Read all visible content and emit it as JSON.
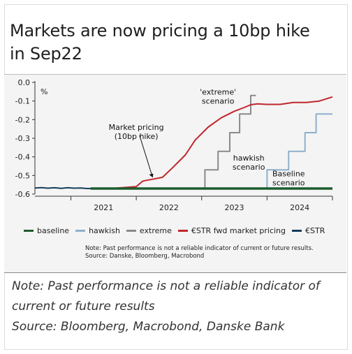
{
  "title_line1": "Markets are now pricing a 10bp hike",
  "title_line2": "in Sep22",
  "footer": {
    "note": "Note: Past performance is not a reliable indicator of current or future results",
    "source": "Source: Bloomberg, Macrobond, Danske Bank"
  },
  "chart_note": {
    "line1": "Note: Past performance is not a reliable indicator of current or future results.",
    "line2": "Source: Danske, Bloomberg, Macrobond"
  },
  "chart_data": {
    "type": "line",
    "ylabel": "%",
    "ylim": [
      -0.6,
      0.0
    ],
    "yticks": [
      0.0,
      -0.1,
      -0.2,
      -0.3,
      -0.4,
      -0.5,
      -0.6
    ],
    "ytick_labels": [
      "0.0",
      "-0.1",
      "-0.2",
      "-0.3",
      "-0.4",
      "-0.5",
      "-0.6"
    ],
    "xlim": [
      2020.45,
      2025.0
    ],
    "xticks": [
      "2021",
      "2022",
      "2023",
      "2024"
    ],
    "grid": false,
    "legend_position": "bottom",
    "series": [
      {
        "name": "baseline",
        "color": "#1e5c2e",
        "x": [
          2021.3,
          2025.0
        ],
        "y": [
          -0.57,
          -0.57
        ]
      },
      {
        "name": "hawkish",
        "color": "#8eb0cc",
        "x": [
          2023.83,
          2024.0,
          2024.0,
          2024.33,
          2024.33,
          2024.58,
          2024.58,
          2024.75,
          2024.75,
          2024.92,
          2024.92,
          2025.0
        ],
        "y": [
          -0.57,
          -0.57,
          -0.47,
          -0.47,
          -0.37,
          -0.37,
          -0.27,
          -0.27,
          -0.17,
          -0.17,
          -0.17,
          -0.17
        ]
      },
      {
        "name": "extreme",
        "color": "#8a8a8a",
        "x": [
          2022.88,
          2023.05,
          2023.05,
          2023.25,
          2023.25,
          2023.43,
          2023.43,
          2023.58,
          2023.58,
          2023.75,
          2023.75,
          2023.83
        ],
        "y": [
          -0.57,
          -0.57,
          -0.47,
          -0.47,
          -0.37,
          -0.37,
          -0.27,
          -0.27,
          -0.17,
          -0.17,
          -0.07,
          -0.07
        ]
      },
      {
        "name": "€STR fwd market pricing",
        "color": "#c0272d",
        "x": [
          2021.3,
          2021.6,
          2022.0,
          2022.1,
          2022.25,
          2022.4,
          2022.55,
          2022.75,
          2022.9,
          2023.1,
          2023.3,
          2023.5,
          2023.65,
          2023.75,
          2023.85,
          2024.0,
          2024.2,
          2024.4,
          2024.6,
          2024.8,
          2025.0
        ],
        "y": [
          -0.57,
          -0.57,
          -0.56,
          -0.53,
          -0.52,
          -0.51,
          -0.46,
          -0.39,
          -0.31,
          -0.24,
          -0.19,
          -0.155,
          -0.135,
          -0.12,
          -0.115,
          -0.118,
          -0.118,
          -0.108,
          -0.108,
          -0.1,
          -0.078
        ]
      },
      {
        "name": "€STR",
        "color": "#163e5c",
        "x": [
          2020.45,
          2020.55,
          2020.65,
          2020.75,
          2020.85,
          2020.95,
          2021.05,
          2021.15,
          2021.25,
          2021.3
        ],
        "y": [
          -0.567,
          -0.565,
          -0.568,
          -0.566,
          -0.569,
          -0.566,
          -0.568,
          -0.567,
          -0.57,
          -0.57
        ]
      }
    ],
    "annotations": [
      {
        "text": [
          "Market pricing",
          "(10bp hike)"
        ],
        "x": 2022.0,
        "y": -0.255
      },
      {
        "text": [
          "'extreme'",
          "scenario"
        ],
        "x": 2023.25,
        "y": -0.065
      },
      {
        "text": [
          "hawkish",
          "scenario"
        ],
        "x": 2023.72,
        "y": -0.42
      },
      {
        "text": [
          "Baseline",
          "scenario"
        ],
        "x": 2024.33,
        "y": -0.505
      }
    ]
  }
}
